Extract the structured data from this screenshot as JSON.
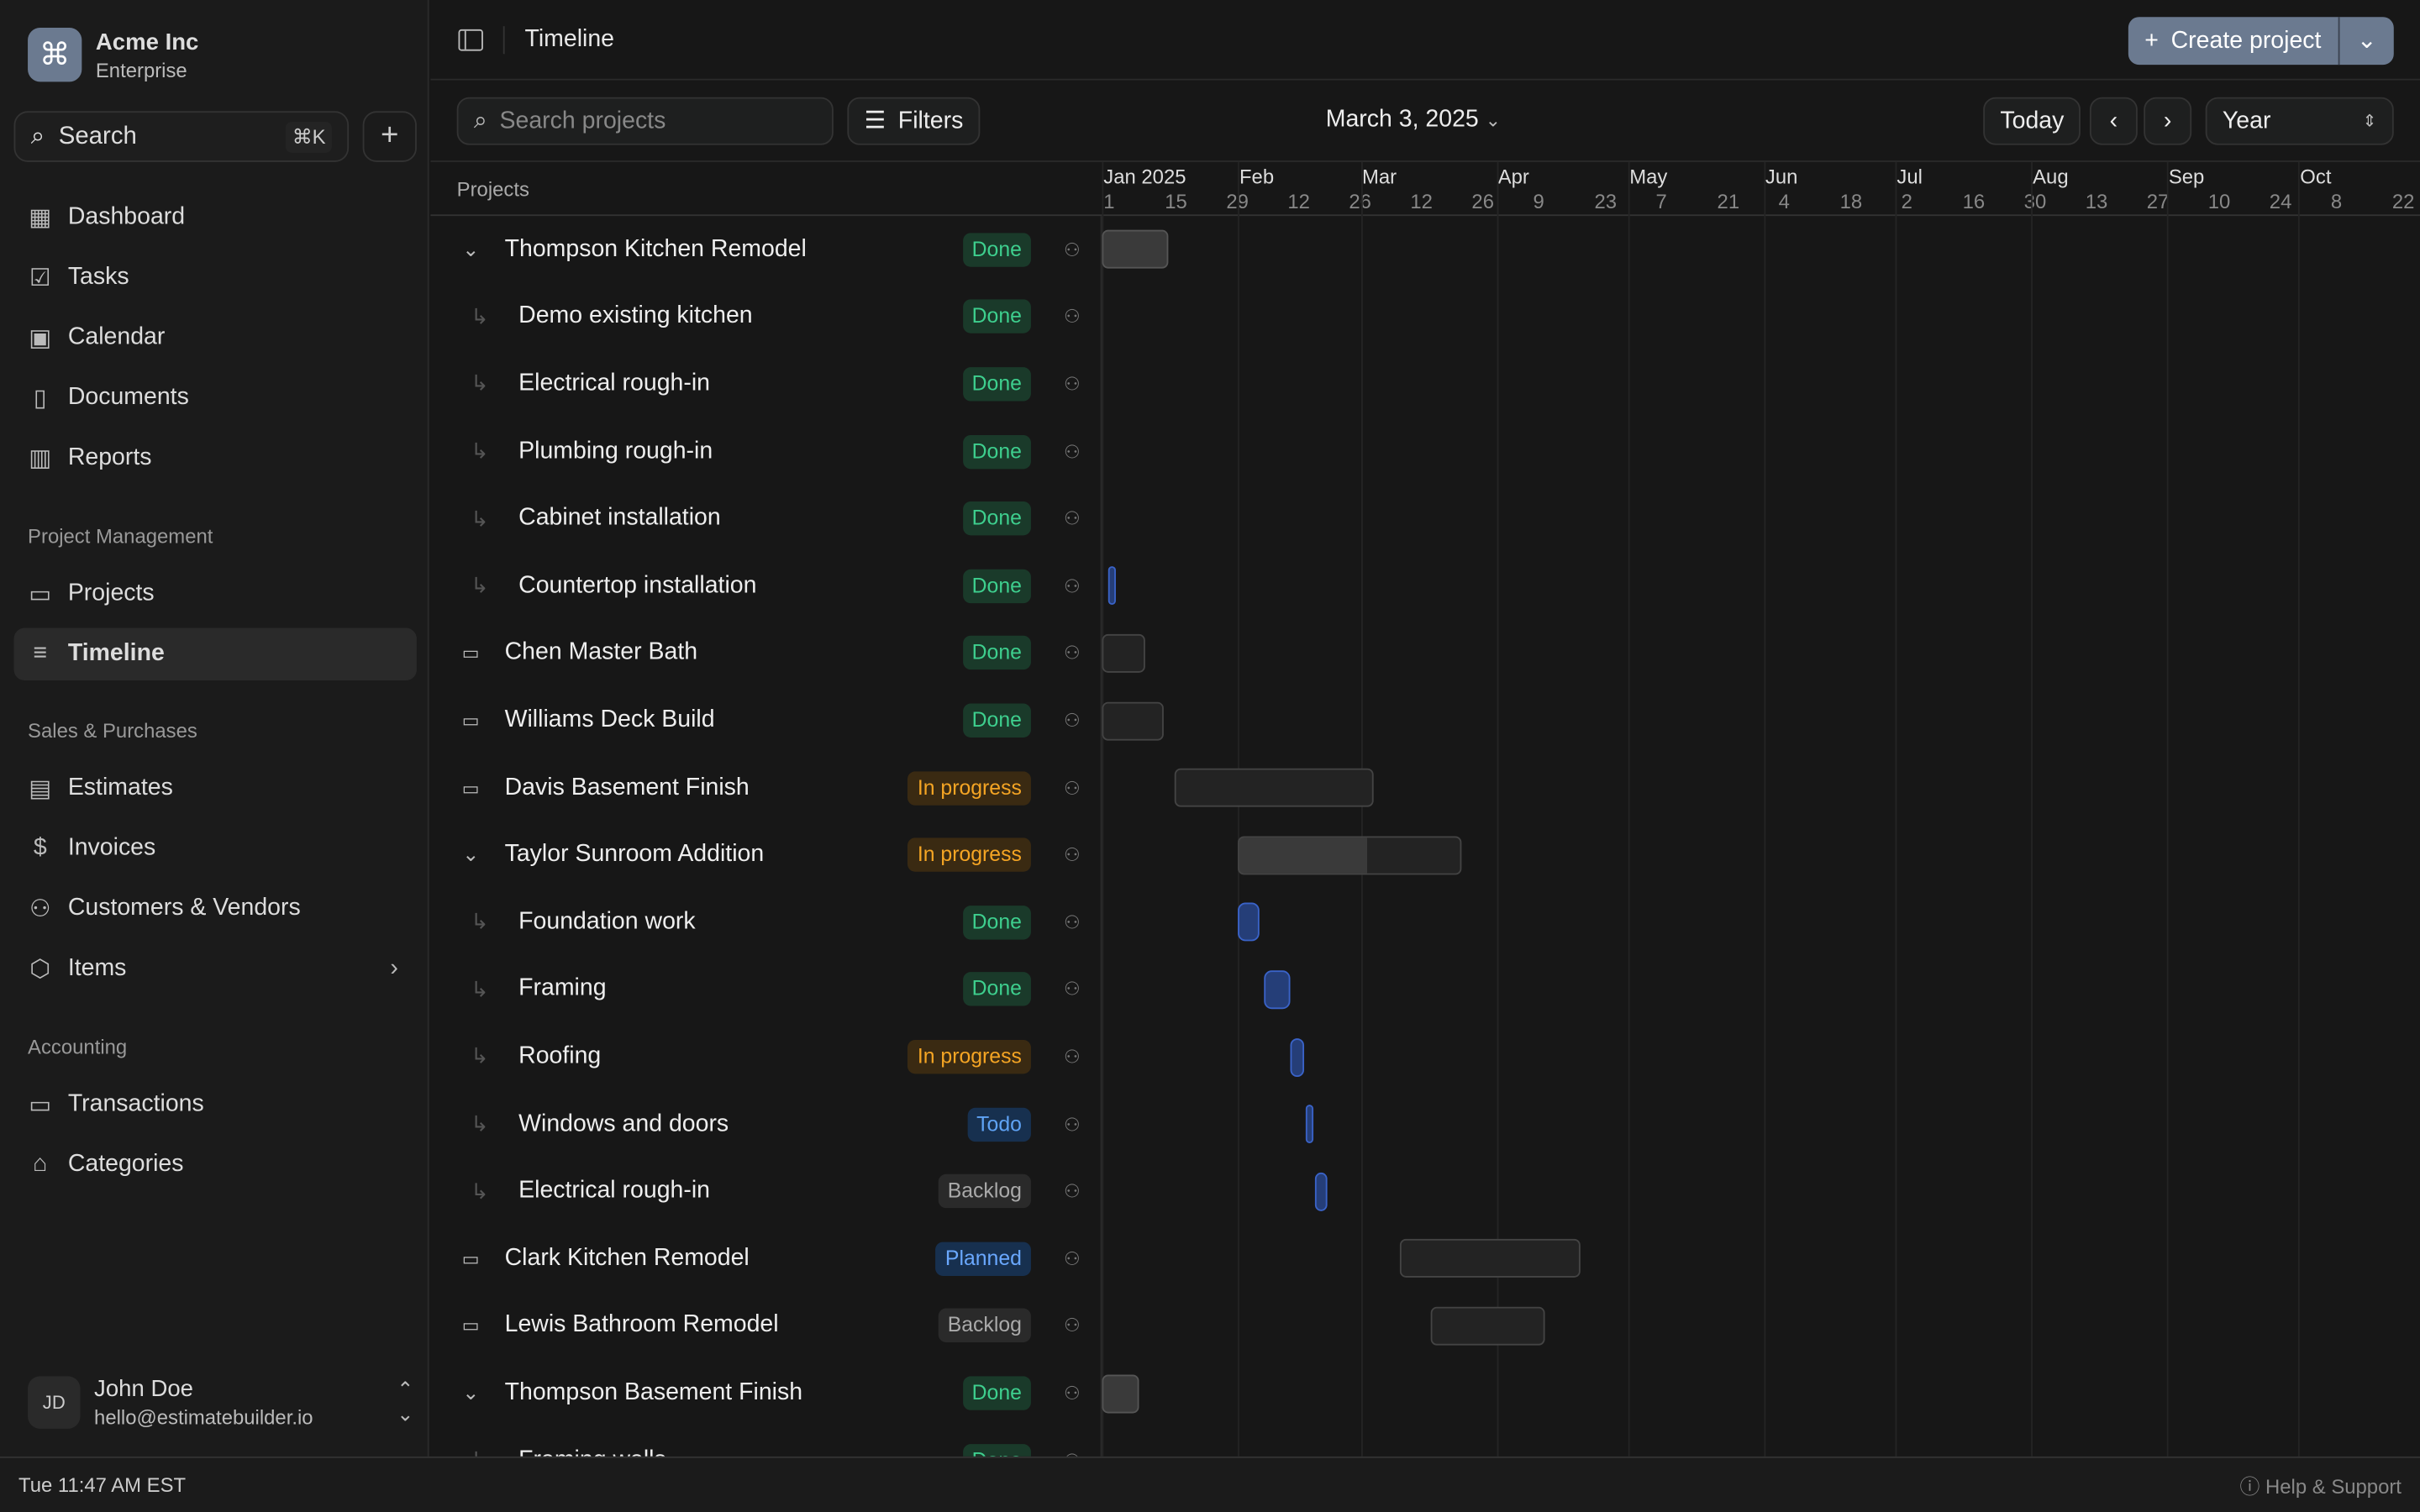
{
  "org": {
    "name": "Acme Inc",
    "plan": "Enterprise",
    "logo_glyph": "⌘"
  },
  "search": {
    "label": "Search",
    "shortcut": "⌘K"
  },
  "nav_main": [
    {
      "label": "Dashboard",
      "icon": "dashboard-icon",
      "glyph": "▦"
    },
    {
      "label": "Tasks",
      "icon": "tasks-icon",
      "glyph": "☑"
    },
    {
      "label": "Calendar",
      "icon": "calendar-icon",
      "glyph": "▣"
    },
    {
      "label": "Documents",
      "icon": "document-icon",
      "glyph": "▯"
    },
    {
      "label": "Reports",
      "icon": "reports-icon",
      "glyph": "▥"
    }
  ],
  "sections": {
    "pm": "Project Management",
    "sales": "Sales & Purchases",
    "acct": "Accounting"
  },
  "nav_pm": [
    {
      "label": "Projects",
      "icon": "folder-icon",
      "glyph": "▭"
    },
    {
      "label": "Timeline",
      "icon": "timeline-icon",
      "glyph": "≡",
      "active": true
    }
  ],
  "nav_sales": [
    {
      "label": "Estimates",
      "icon": "estimate-icon",
      "glyph": "▤"
    },
    {
      "label": "Invoices",
      "icon": "invoice-icon",
      "glyph": "$"
    },
    {
      "label": "Customers & Vendors",
      "icon": "users-icon",
      "glyph": "⚇"
    },
    {
      "label": "Items",
      "icon": "box-icon",
      "glyph": "⬡",
      "chevron": "›"
    }
  ],
  "nav_acct": [
    {
      "label": "Transactions",
      "icon": "transactions-icon",
      "glyph": "▭"
    },
    {
      "label": "Categories",
      "icon": "tag-icon",
      "glyph": "⌂"
    }
  ],
  "user": {
    "initials": "JD",
    "name": "John Doe",
    "email": "hello@estimatebuilder.io"
  },
  "statusbar": {
    "time": "Tue 11:47 AM EST",
    "help": "Help & Support"
  },
  "topbar": {
    "title": "Timeline",
    "create": "Create project"
  },
  "toolbar": {
    "search_placeholder": "Search projects",
    "filters": "Filters",
    "date": "March 3, 2025",
    "today": "Today",
    "view": "Year"
  },
  "list_header": "Projects",
  "status_colors": {
    "Done": [
      "#1a3a2a",
      "#3ecf8e"
    ],
    "In progress": [
      "#3a2a12",
      "#f5a524"
    ],
    "Todo": [
      "#17304f",
      "#5fa3f5"
    ],
    "Backlog": [
      "#2a2a2a",
      "#aaaaaa"
    ],
    "Planned": [
      "#17304f",
      "#6aa8ff"
    ]
  },
  "timeline": {
    "months": [
      {
        "label": "Jan 2025",
        "day": 0
      },
      {
        "label": "Feb",
        "day": 31
      },
      {
        "label": "Mar",
        "day": 59
      },
      {
        "label": "Apr",
        "day": 90
      },
      {
        "label": "May",
        "day": 120
      },
      {
        "label": "Jun",
        "day": 151
      },
      {
        "label": "Jul",
        "day": 181
      },
      {
        "label": "Aug",
        "day": 212
      },
      {
        "label": "Sep",
        "day": 243
      },
      {
        "label": "Oct",
        "day": 273
      }
    ],
    "week_labels": [
      "1",
      "15",
      "29",
      "12",
      "26",
      "12",
      "26",
      "9",
      "23",
      "7",
      "21",
      "4",
      "18",
      "2",
      "16",
      "30",
      "13",
      "27",
      "10",
      "24",
      "8",
      "22"
    ],
    "week_start_day": 0,
    "week_step_days": 14
  },
  "rows": [
    {
      "name": "Thompson Kitchen Remodel",
      "type": "project",
      "expanded": true,
      "status": "Done",
      "start": -5,
      "end": 15
    },
    {
      "name": "Demo existing kitchen",
      "type": "task",
      "status": "Done"
    },
    {
      "name": "Electrical rough-in",
      "type": "task",
      "status": "Done"
    },
    {
      "name": "Plumbing rough-in",
      "type": "task",
      "status": "Done"
    },
    {
      "name": "Cabinet installation",
      "type": "task",
      "status": "Done"
    },
    {
      "name": "Countertop installation",
      "type": "task",
      "status": "Done",
      "start": 1.5,
      "end": 3.2,
      "accent": true
    },
    {
      "name": "Chen Master Bath",
      "type": "folder",
      "status": "Done",
      "start": -5,
      "end": 10
    },
    {
      "name": "Williams Deck Build",
      "type": "folder",
      "status": "Done",
      "start": -5,
      "end": 14
    },
    {
      "name": "Davis Basement Finish",
      "type": "folder",
      "status": "In progress",
      "start": 16.5,
      "end": 62
    },
    {
      "name": "Taylor Sunroom Addition",
      "type": "project",
      "expanded": true,
      "status": "In progress",
      "start": 31,
      "end": 82,
      "progress": 0.58
    },
    {
      "name": "Foundation work",
      "type": "task",
      "status": "Done",
      "start": 31,
      "end": 36,
      "accent": true
    },
    {
      "name": "Framing",
      "type": "task",
      "status": "Done",
      "start": 37,
      "end": 43,
      "accent": true
    },
    {
      "name": "Roofing",
      "type": "task",
      "status": "In progress",
      "start": 43,
      "end": 46,
      "accent": true
    },
    {
      "name": "Windows and doors",
      "type": "task",
      "status": "Todo",
      "start": 46.5,
      "end": 48.3,
      "accent": true
    },
    {
      "name": "Electrical rough-in",
      "type": "task",
      "status": "Backlog",
      "start": 48.7,
      "end": 51.3,
      "accent": true
    },
    {
      "name": "Clark Kitchen Remodel",
      "type": "folder",
      "status": "Planned",
      "start": 68,
      "end": 109
    },
    {
      "name": "Lewis Bathroom Remodel",
      "type": "folder",
      "status": "Backlog",
      "start": 75,
      "end": 101
    },
    {
      "name": "Thompson Basement Finish",
      "type": "project",
      "expanded": true,
      "status": "Done",
      "start": -5,
      "end": 8.5
    },
    {
      "name": "Framing walls",
      "type": "task",
      "status": "Done"
    }
  ]
}
